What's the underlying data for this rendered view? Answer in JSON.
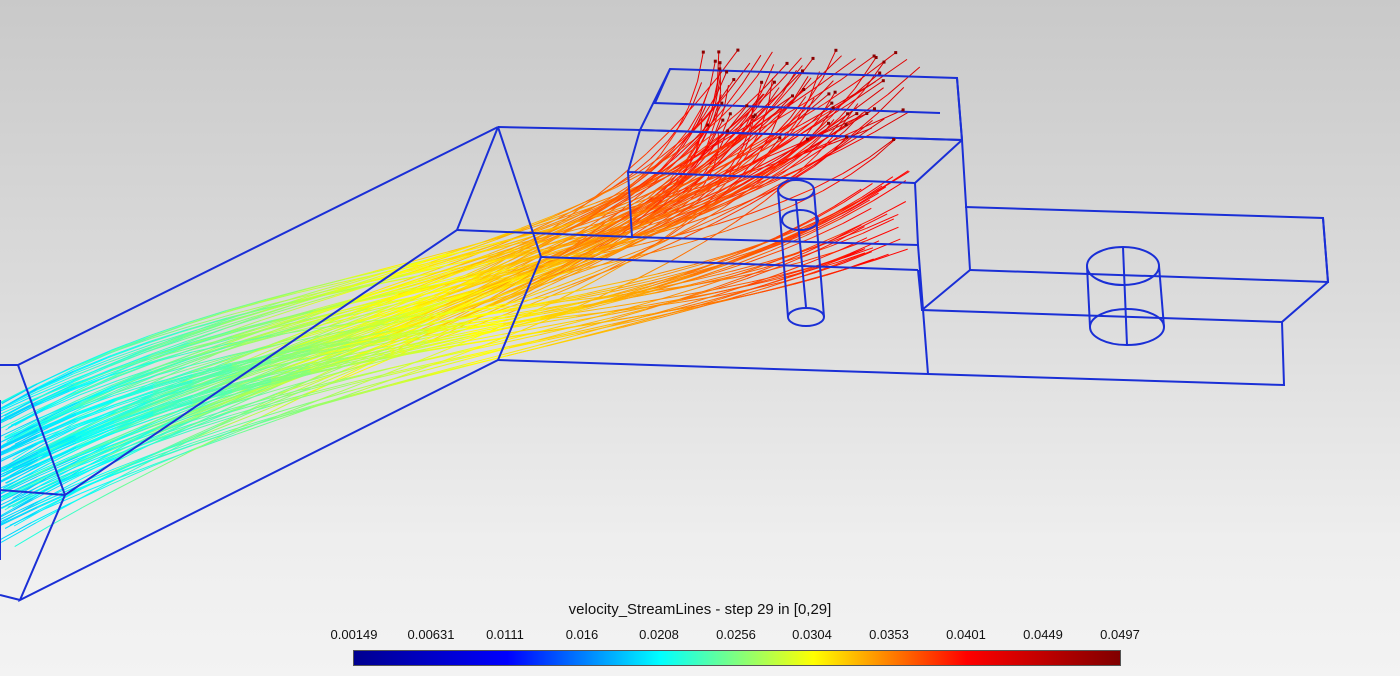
{
  "legend": {
    "title": "velocity_StreamLines - step 29 in [0,29]",
    "ticks": [
      "0.00149",
      "0.00631",
      "0.0111",
      "0.016",
      "0.0208",
      "0.0256",
      "0.0304",
      "0.0353",
      "0.0401",
      "0.0449",
      "0.0497"
    ],
    "colormap": [
      "#00008f",
      "#0000ff",
      "#00ffff",
      "#ffff00",
      "#ff0000",
      "#800000"
    ]
  },
  "colors": {
    "wireframe": "#1a2fd6",
    "seed_points": "#8b0000",
    "background_top": "#c9c9c9",
    "background_bottom": "#f3f3f3"
  }
}
